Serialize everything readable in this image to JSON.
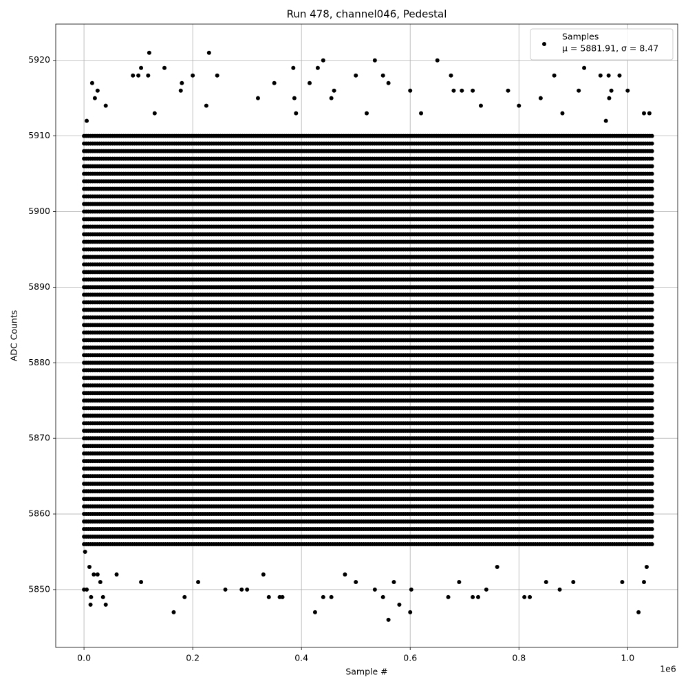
{
  "chart_data": {
    "type": "scatter",
    "title": "Run 478, channel046, Pedestal",
    "xlabel": "Sample #",
    "ylabel": "ADC Counts",
    "x_offset_label": "1e6",
    "xlim": [
      -52000,
      1092000
    ],
    "ylim": [
      5842.35,
      5924.8
    ],
    "xticks": [
      {
        "value": 0,
        "label": "0.0"
      },
      {
        "value": 200000,
        "label": "0.2"
      },
      {
        "value": 400000,
        "label": "0.4"
      },
      {
        "value": 600000,
        "label": "0.6"
      },
      {
        "value": 800000,
        "label": "0.8"
      },
      {
        "value": 1000000,
        "label": "1.0"
      }
    ],
    "yticks": [
      5850,
      5860,
      5870,
      5880,
      5890,
      5900,
      5910,
      5920
    ],
    "grid": true,
    "legend": "upper right",
    "legend_note": "μ = 5881.91, σ = 8.47",
    "band_x": [
      0,
      1045000
    ],
    "band_levels": [
      5856,
      5857,
      5858,
      5859,
      5860,
      5861,
      5862,
      5863,
      5864,
      5865,
      5866,
      5867,
      5868,
      5869,
      5870,
      5871,
      5872,
      5873,
      5874,
      5875,
      5876,
      5877,
      5878,
      5879,
      5880,
      5881,
      5882,
      5883,
      5884,
      5885,
      5886,
      5887,
      5888,
      5889,
      5890,
      5891,
      5892,
      5893,
      5894,
      5895,
      5896,
      5897,
      5898,
      5899,
      5900,
      5901,
      5902,
      5903,
      5904,
      5905,
      5906,
      5907,
      5908,
      5909,
      5910
    ],
    "series": [
      {
        "name": "Samples",
        "color": "#000000",
        "x": [
          0,
          5000,
          12000,
          13000,
          18000,
          25000,
          35000,
          40000,
          10000,
          165000,
          185000,
          290000,
          300000,
          340000,
          360000,
          365000,
          425000,
          440000,
          455000,
          535000,
          550000,
          560000,
          580000,
          600000,
          602000,
          670000,
          715000,
          725000,
          740000,
          810000,
          820000,
          875000,
          990000,
          1020000,
          1030000,
          2000,
          30000,
          60000,
          105000,
          210000,
          260000,
          330000,
          480000,
          500000,
          570000,
          690000,
          760000,
          850000,
          900000,
          1035000,
          15000,
          20000,
          25000,
          90000,
          100000,
          105000,
          120000,
          118000,
          148000,
          180000,
          178000,
          200000,
          230000,
          245000,
          350000,
          385000,
          387000,
          415000,
          430000,
          440000,
          460000,
          455000,
          500000,
          535000,
          550000,
          560000,
          600000,
          650000,
          675000,
          680000,
          695000,
          715000,
          780000,
          840000,
          865000,
          910000,
          920000,
          950000,
          965000,
          970000,
          966000,
          985000,
          1000000,
          5000,
          40000,
          130000,
          225000,
          320000,
          390000,
          520000,
          620000,
          730000,
          800000,
          880000,
          960000,
          1030000,
          1040000
        ],
        "values": [
          5850,
          5850,
          5848,
          5849,
          5852,
          5852,
          5849,
          5848,
          5853,
          5847,
          5849,
          5850,
          5850,
          5849,
          5849,
          5849,
          5847,
          5849,
          5849,
          5850,
          5849,
          5846,
          5848,
          5847,
          5850,
          5849,
          5849,
          5849,
          5850,
          5849,
          5849,
          5850,
          5851,
          5847,
          5851,
          5855,
          5851,
          5852,
          5851,
          5851,
          5850,
          5852,
          5852,
          5851,
          5851,
          5851,
          5853,
          5851,
          5851,
          5853,
          5917,
          5915,
          5916,
          5918,
          5918,
          5919,
          5921,
          5918,
          5919,
          5917,
          5916,
          5918,
          5921,
          5918,
          5917,
          5919,
          5915,
          5917,
          5919,
          5920,
          5916,
          5915,
          5918,
          5920,
          5918,
          5917,
          5916,
          5920,
          5918,
          5916,
          5916,
          5916,
          5916,
          5915,
          5918,
          5916,
          5919,
          5918,
          5918,
          5916,
          5915,
          5918,
          5916,
          5912,
          5914,
          5913,
          5914,
          5915,
          5913,
          5913,
          5913,
          5914,
          5914,
          5913,
          5912,
          5913,
          5913
        ]
      }
    ]
  }
}
